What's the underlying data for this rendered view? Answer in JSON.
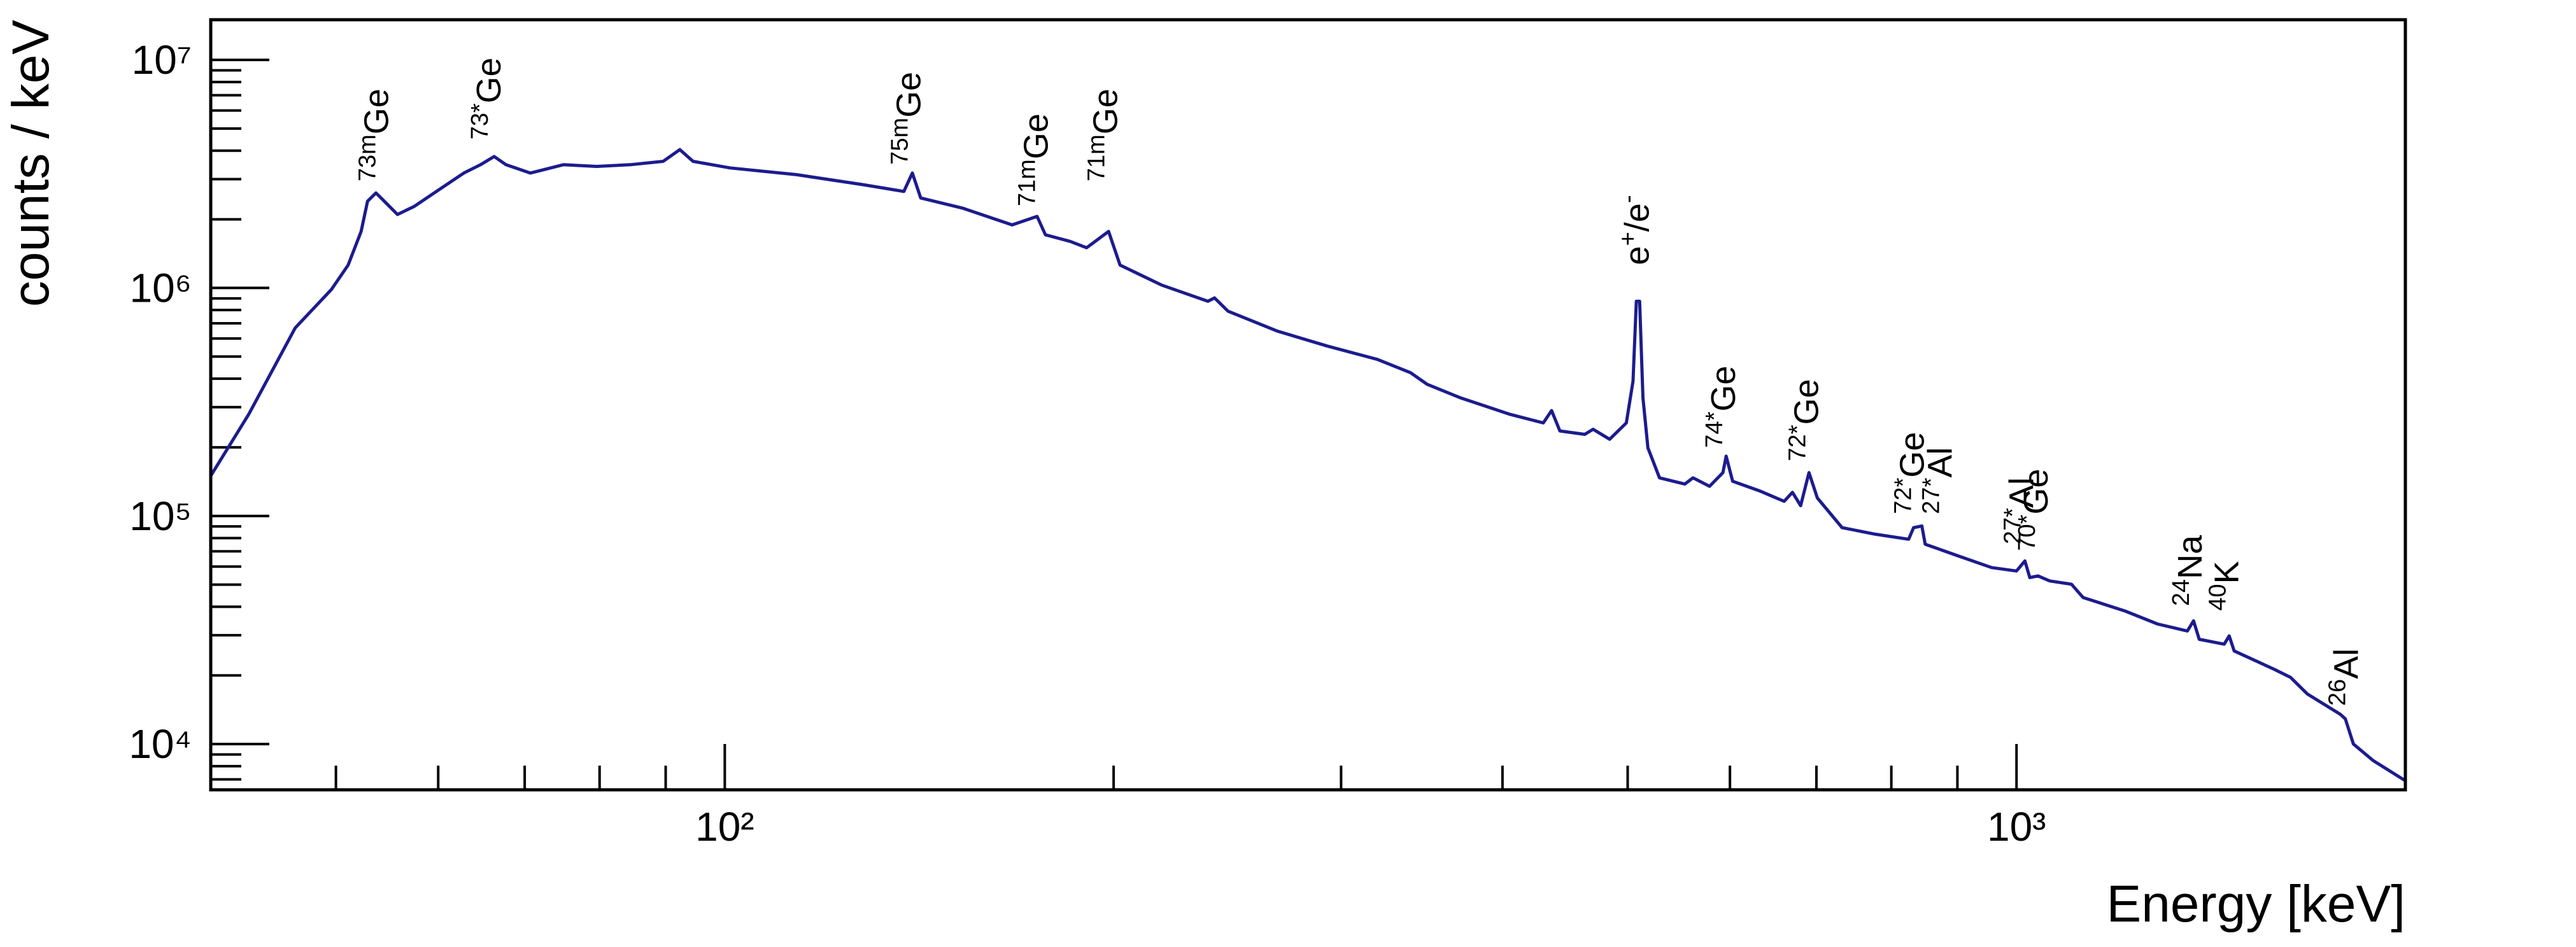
{
  "chart_data": {
    "type": "line",
    "x_label": "Energy [keV]",
    "y_label": "counts / keV",
    "log_x": true,
    "log_y": true,
    "xlim": [
      40,
      2000
    ],
    "ylim": [
      6300,
      15000000
    ],
    "xticks": [
      {
        "value": 100,
        "label": "10²"
      },
      {
        "value": 1000,
        "label": "10³"
      }
    ],
    "yticks": [
      {
        "value": 10000,
        "label": "10⁴"
      },
      {
        "value": 100000,
        "label": "10⁵"
      },
      {
        "value": 1000000,
        "label": "10⁶"
      },
      {
        "value": 10000000,
        "label": "10⁷"
      }
    ],
    "xticks_minor": [
      50,
      60,
      70,
      80,
      90,
      200,
      300,
      400,
      500,
      600,
      700,
      800,
      900
    ],
    "yticks_minor": [
      7000,
      8000,
      9000,
      20000,
      30000,
      40000,
      50000,
      60000,
      70000,
      80000,
      90000,
      200000,
      300000,
      400000,
      500000,
      600000,
      700000,
      800000,
      900000,
      2000000,
      3000000,
      4000000,
      5000000,
      6000000,
      7000000,
      8000000,
      9000000
    ],
    "series": [
      {
        "color": "#1c1c8e",
        "x": [
          40,
          42.8,
          46.5,
          49.6,
          51.1,
          52.3,
          52.9,
          53.7,
          54.5,
          55.8,
          57.5,
          60.1,
          62.8,
          64.7,
          66.3,
          67.7,
          70.7,
          75.0,
          79.6,
          84.5,
          89.6,
          92.3,
          94.5,
          100.9,
          113.6,
          127.8,
          137.6,
          139.7,
          141.8,
          152.7,
          166.9,
          174.5,
          177.1,
          185.1,
          190.6,
          198.2,
          202.3,
          217.8,
          236.6,
          239.4,
          245.2,
          267.9,
          292.8,
          320.0,
          339.5,
          349.7,
          371.0,
          405.5,
          430.2,
          436.6,
          443.1,
          463.2,
          470.1,
          484.2,
          498.8,
          504.8,
          507.8,
          510.8,
          513.8,
          518.4,
          529.2,
          553.6,
          561.8,
          578.6,
          592.5,
          596.0,
          602.9,
          632.2,
          660.9,
          670.7,
          680.6,
          690.8,
          701.1,
          732.8,
          777.5,
          825.1,
          832.4,
          844.8,
          849.8,
          901.6,
          956.6,
          1000,
          1015,
          1024,
          1039,
          1061,
          1103,
          1126,
          1212,
          1286,
          1356,
          1371,
          1385,
          1448,
          1461,
          1474,
          1582,
          1630,
          1679,
          1781,
          1797,
          1823,
          1889,
          2000
        ],
        "values": [
          150000,
          279000,
          668000,
          984000,
          1260000,
          1770000,
          2400000,
          2610000,
          2400000,
          2100000,
          2280000,
          2700000,
          3190000,
          3470000,
          3770000,
          3470000,
          3190000,
          3470000,
          3410000,
          3470000,
          3590000,
          4040000,
          3590000,
          3360000,
          3140000,
          2840000,
          2650000,
          3190000,
          2480000,
          2240000,
          1890000,
          2060000,
          1710000,
          1600000,
          1500000,
          1770000,
          1260000,
          1030000,
          874000,
          904000,
          791000,
          646000,
          556000,
          486000,
          425000,
          378000,
          330000,
          279000,
          256000,
          290000,
          236000,
          228000,
          240000,
          217000,
          256000,
          390000,
          874000,
          874000,
          330000,
          199000,
          147000,
          138000,
          147000,
          135000,
          155000,
          183000,
          142000,
          129000,
          116000,
          127000,
          111000,
          155000,
          120000,
          88900,
          83200,
          79100,
          88900,
          90400,
          75200,
          66800,
          59400,
          57400,
          63500,
          53700,
          54600,
          51900,
          50200,
          43900,
          38400,
          33600,
          31300,
          34700,
          28800,
          27400,
          29800,
          25600,
          21300,
          19600,
          16600,
          13500,
          12900,
          10000,
          8450,
          6900
        ]
      }
    ],
    "annotations": [
      {
        "x": 54,
        "y": 2930000,
        "label": [
          {
            "text": "73m",
            "sup": true
          },
          {
            "text": "Ge"
          }
        ]
      },
      {
        "x": 66,
        "y": 4470000,
        "label": [
          {
            "text": "73*",
            "sup": true
          },
          {
            "text": "Ge"
          }
        ]
      },
      {
        "x": 139.5,
        "y": 3470000,
        "label": [
          {
            "text": "75m",
            "sup": true
          },
          {
            "text": "Ge"
          }
        ]
      },
      {
        "x": 175,
        "y": 2280000,
        "label": [
          {
            "text": "71m",
            "sup": true
          },
          {
            "text": "Ge"
          }
        ]
      },
      {
        "x": 198,
        "y": 2930000,
        "label": [
          {
            "text": "71m",
            "sup": true
          },
          {
            "text": "Ge"
          }
        ]
      },
      {
        "x": 511,
        "y": 1260000,
        "label": [
          {
            "text": "e"
          },
          {
            "text": "+",
            "sup": true
          },
          {
            "text": "/e"
          },
          {
            "text": "-",
            "sup": true
          }
        ]
      },
      {
        "x": 596,
        "y": 199000,
        "label": [
          {
            "text": "74*",
            "sup": true
          },
          {
            "text": "Ge"
          }
        ]
      },
      {
        "x": 691,
        "y": 174000,
        "label": [
          {
            "text": "72*",
            "sup": true
          },
          {
            "text": "Ge"
          }
        ]
      },
      {
        "x": 834,
        "y": 102000,
        "label": [
          {
            "text": "72*",
            "sup": true
          },
          {
            "text": "Ge"
          }
        ]
      },
      {
        "x": 877,
        "y": 102000,
        "label": [
          {
            "text": "27*",
            "sup": true
          },
          {
            "text": "Al"
          }
        ]
      },
      {
        "x": 1014,
        "y": 75200,
        "label": [
          {
            "text": "27*",
            "sup": true
          },
          {
            "text": "Al"
          }
        ]
      },
      {
        "x": 1040,
        "y": 70300,
        "label": [
          {
            "text": "70*",
            "sup": true
          },
          {
            "text": "Ge"
          }
        ]
      },
      {
        "x": 1369,
        "y": 40300,
        "label": [
          {
            "text": "24",
            "sup": true
          },
          {
            "text": "Na"
          }
        ]
      },
      {
        "x": 1461,
        "y": 38400,
        "label": [
          {
            "text": "40",
            "sup": true
          },
          {
            "text": "K"
          }
        ]
      },
      {
        "x": 1809,
        "y": 14700,
        "label": [
          {
            "text": "26",
            "sup": true
          },
          {
            "text": "Al"
          }
        ]
      }
    ]
  }
}
